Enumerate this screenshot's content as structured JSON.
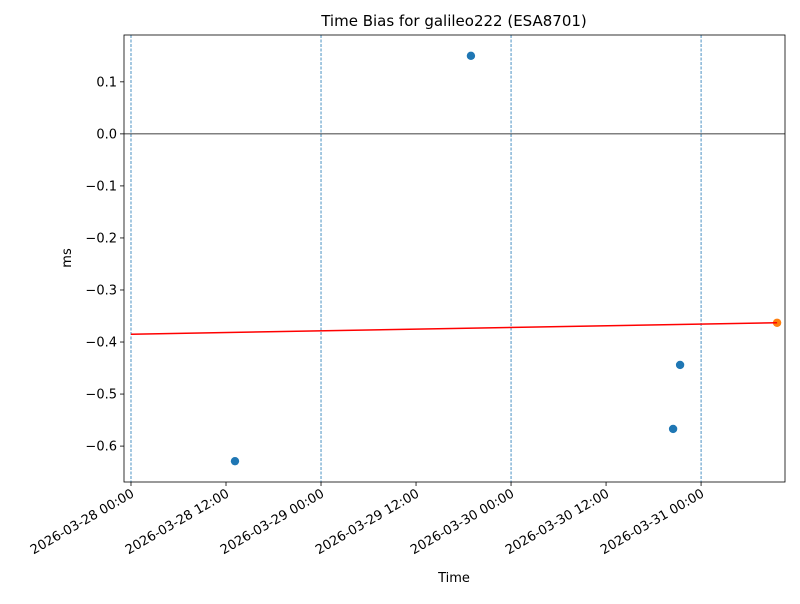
{
  "chart_data": {
    "type": "scatter",
    "title": "Time Bias for galileo222 (ESA8701)",
    "x_label": "Time",
    "y_label": "ms",
    "xlim": [
      "2026-03-27 23:07",
      "2026-03-31 10:36"
    ],
    "xticks": [
      "2026-03-28 00:00",
      "2026-03-28 12:00",
      "2026-03-29 00:00",
      "2026-03-29 12:00",
      "2026-03-30 00:00",
      "2026-03-30 12:00",
      "2026-03-31 00:00"
    ],
    "ylim": [
      -0.669,
      0.19
    ],
    "yticks": [
      {
        "value": -0.6,
        "label": "−0.6"
      },
      {
        "value": -0.5,
        "label": "−0.5"
      },
      {
        "value": -0.4,
        "label": "−0.4"
      },
      {
        "value": -0.3,
        "label": "−0.3"
      },
      {
        "value": -0.2,
        "label": "−0.2"
      },
      {
        "value": -0.1,
        "label": "−0.1"
      },
      {
        "value": 0,
        "label": "0.0"
      },
      0.1
    ],
    "vlines": [
      "2026-03-28 00:00",
      "2026-03-29 00:00",
      "2026-03-30 00:00",
      "2026-03-31 00:00"
    ],
    "vline_color": "#1f77b4",
    "hline": 0,
    "series": [
      {
        "style": "scatter",
        "color": "#1f77b4",
        "x": [
          "2026-03-28 13:08",
          "2026-03-29 18:56",
          "2026-03-30 20:28",
          "2026-03-30 21:21"
        ],
        "values": [
          -0.629,
          0.15,
          -0.567,
          -0.444
        ]
      },
      {
        "style": "scatter",
        "color": "#ff7f0e",
        "x": [
          "2026-03-31 09:36"
        ],
        "values": [
          -0.363
        ]
      },
      {
        "style": "line",
        "color": "#ff0000",
        "x": [
          "2026-03-28 00:00",
          "2026-03-31 09:36"
        ],
        "values": [
          -0.385,
          -0.363
        ]
      }
    ]
  }
}
